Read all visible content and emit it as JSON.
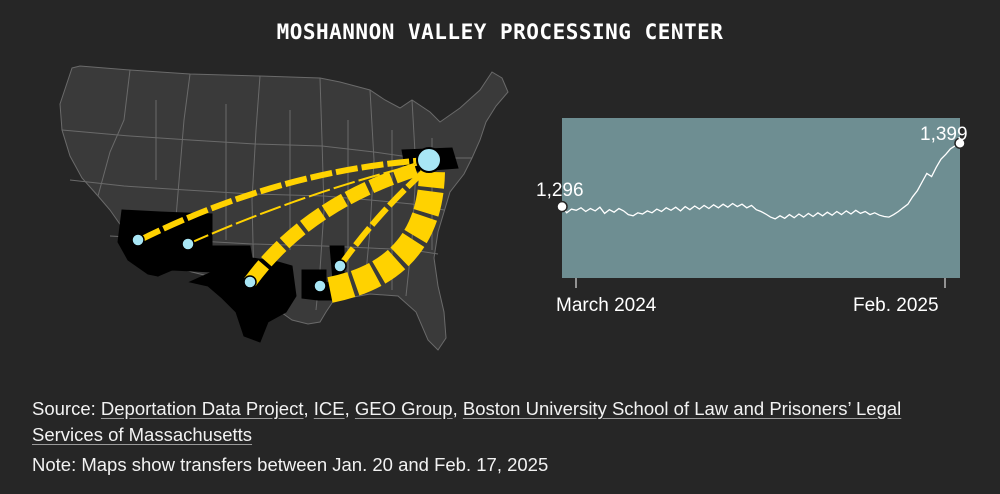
{
  "title": "MOSHANNON VALLEY PROCESSING CENTER",
  "colors": {
    "background": "#262626",
    "map_states": "#3a3a3a",
    "map_borders": "#6a6a6a",
    "highlighted_states": "#000000",
    "transfer_arrows": "#ffd200",
    "facility_dots": "#a8e6f5",
    "chart_panel": "#6e8e92",
    "chart_line": "#ffffff"
  },
  "map": {
    "destination": "Moshannon Valley Processing Center",
    "origins_count": 5
  },
  "chart_data": {
    "type": "line",
    "title": "",
    "xlabel": "",
    "ylabel": "",
    "x_ticks": [
      "March 2024",
      "Feb. 2025"
    ],
    "start_value": 1296,
    "end_value": 1399,
    "start_label": "1,296",
    "end_label": "1,399",
    "ylim": [
      1180,
      1440
    ],
    "grid": false,
    "series": [
      {
        "values": [
          1296,
          1286,
          1292,
          1290,
          1294,
          1288,
          1293,
          1289,
          1295,
          1285,
          1291,
          1287,
          1293,
          1289,
          1283,
          1281,
          1286,
          1284,
          1289,
          1286,
          1292,
          1288,
          1294,
          1290,
          1295,
          1289,
          1296,
          1291,
          1297,
          1292,
          1298,
          1293,
          1299,
          1294,
          1300,
          1295,
          1301,
          1296,
          1300,
          1294,
          1298,
          1291,
          1288,
          1284,
          1279,
          1276,
          1281,
          1277,
          1283,
          1278,
          1284,
          1279,
          1285,
          1280,
          1286,
          1281,
          1287,
          1282,
          1288,
          1283,
          1289,
          1284,
          1290,
          1285,
          1288,
          1283,
          1286,
          1282,
          1280,
          1279,
          1283,
          1288,
          1294,
          1300,
          1312,
          1322,
          1336,
          1350,
          1345,
          1360,
          1373,
          1381,
          1390,
          1395,
          1399
        ]
      }
    ]
  },
  "footer": {
    "source_prefix": "Source: ",
    "sources": [
      "Deportation Data Project",
      "ICE",
      "GEO Group",
      "Boston University School of Law and Prisoners’ Legal Services of Massachusetts"
    ],
    "separator": ", ",
    "note": "Note: Maps show transfers between Jan. 20 and Feb. 17, 2025"
  }
}
